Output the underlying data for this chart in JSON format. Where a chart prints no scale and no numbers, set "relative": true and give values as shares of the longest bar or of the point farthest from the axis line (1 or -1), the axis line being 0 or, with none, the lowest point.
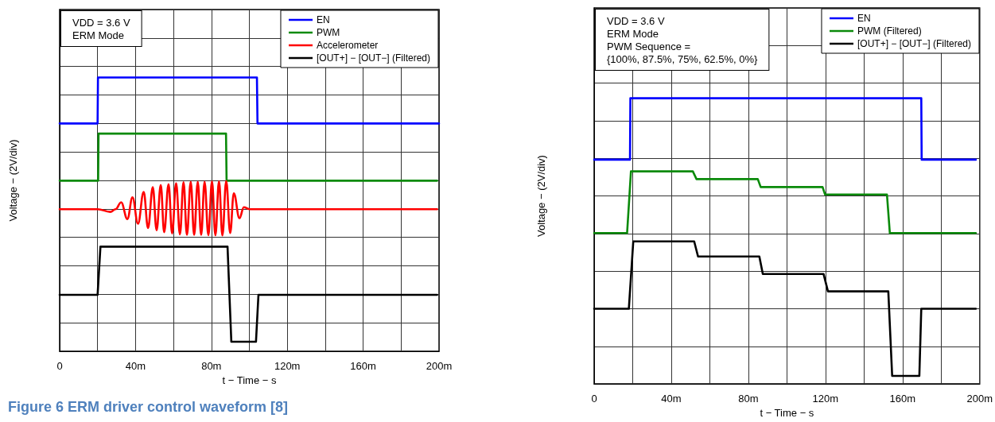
{
  "chart_data": [
    {
      "type": "line",
      "xlabel": "t − Time − s",
      "ylabel": "Voltage − (2V/div)",
      "annotations": [
        "VDD = 3.6 V\nERM Mode",
        "Figure 6 ERM driver control waveform [8]"
      ],
      "xlim": [
        0,
        200
      ],
      "xticks": [
        0,
        {
          "value": 20,
          "label": null
        },
        {
          "value": 40,
          "label": "40m"
        },
        {
          "value": 60,
          "label": null
        },
        {
          "value": 80,
          "label": "80m"
        },
        {
          "value": 100,
          "label": null
        },
        {
          "value": 120,
          "label": "120m"
        },
        {
          "value": 140,
          "label": null
        },
        {
          "value": 160,
          "label": "160m"
        },
        {
          "value": 180,
          "label": null
        },
        {
          "value": 200,
          "label": "200m"
        }
      ],
      "relative": true,
      "grid": true,
      "legend": "top right",
      "marker": "none",
      "series": [
        {
          "name": "EN",
          "color": "#0000ff",
          "x": [
            0,
            20,
            20.2,
            104,
            104.3,
            200
          ],
          "values": [
            0.832,
            0.832,
            1,
            1,
            0.832,
            0.832
          ]
        },
        {
          "name": "PWM",
          "color": "#0a8a0a",
          "x": [
            0,
            20.3,
            20.5,
            87.7,
            88,
            199
          ],
          "values": [
            0.623,
            0.623,
            0.795,
            0.795,
            0.623,
            0.623
          ]
        },
        {
          "name": "Accelerometer",
          "color": "#ff0000",
          "x": [
            0,
            20,
            26.7,
            29.5,
            32.4,
            35.7,
            38.4,
            41.3,
            44.3,
            46.6,
            49.1,
            51.1,
            53.3,
            55.1,
            57.4,
            59.3,
            61.4,
            63.4,
            65.3,
            67.1,
            69.1,
            70.9,
            72.8,
            74.6,
            76.4,
            78.4,
            80.3,
            82.1,
            84,
            85.8,
            87.8,
            89.9,
            91.8,
            94.8,
            97.1,
            100,
            199
          ],
          "values": [
            0.519,
            0.519,
            0.509,
            0.519,
            0.544,
            0.483,
            0.562,
            0.466,
            0.582,
            0.45,
            0.599,
            0.442,
            0.607,
            0.435,
            0.61,
            0.43,
            0.614,
            0.427,
            0.617,
            0.425,
            0.619,
            0.425,
            0.619,
            0.425,
            0.619,
            0.424,
            0.62,
            0.424,
            0.62,
            0.423,
            0.622,
            0.432,
            0.577,
            0.486,
            0.526,
            0.519,
            0.519
          ]
        },
        {
          "name": "[OUT+] − [OUT−] (Filtered)",
          "color": "#000000",
          "x": [
            0,
            20,
            21.5,
            88.5,
            90.5,
            103.5,
            104.8,
            199
          ],
          "values": [
            0.206,
            0.206,
            0.382,
            0.382,
            0.035,
            0.035,
            0.206,
            0.206
          ]
        }
      ]
    },
    {
      "type": "line",
      "xlabel": "t − Time − s",
      "ylabel": "Voltage − (2V/div)",
      "annotations": [
        "VDD = 3.6 V\nERM Mode\nPWM Sequence =\n{100%, 87.5%, 75%, 62.5%, 0%}"
      ],
      "xlim": [
        0,
        200
      ],
      "xticks": [
        0,
        {
          "value": 20,
          "label": null
        },
        {
          "value": 40,
          "label": "40m"
        },
        {
          "value": 60,
          "label": null
        },
        {
          "value": 80,
          "label": "80m"
        },
        {
          "value": 100,
          "label": null
        },
        {
          "value": 120,
          "label": "120m"
        },
        {
          "value": 140,
          "label": null
        },
        {
          "value": 160,
          "label": "160m"
        },
        {
          "value": 180,
          "label": null
        },
        {
          "value": 200,
          "label": "200m"
        }
      ],
      "relative": true,
      "grid": true,
      "legend": "top right",
      "marker": "none",
      "series": [
        {
          "name": "EN",
          "color": "#0000ff",
          "x": [
            0,
            18.6,
            18.8,
            169.7,
            169.9,
            198
          ],
          "values": [
            0.785,
            0.785,
            1,
            1,
            0.785,
            0.785
          ]
        },
        {
          "name": "PWM (Filtered)",
          "color": "#0a8a0a",
          "x": [
            0,
            17.1,
            19.1,
            51.2,
            53.1,
            84.9,
            86.4,
            118.5,
            119.8,
            151.9,
            153.4,
            198
          ],
          "values": [
            0.528,
            0.528,
            0.744,
            0.744,
            0.717,
            0.717,
            0.689,
            0.689,
            0.663,
            0.663,
            0.528,
            0.528
          ]
        },
        {
          "name": "[OUT+] − [OUT−] (Filtered)",
          "color": "#000000",
          "x": [
            0,
            18,
            20.3,
            51.9,
            53.9,
            85.7,
            87.5,
            119,
            121.3,
            152.6,
            154.6,
            168.7,
            169.7,
            198
          ],
          "values": [
            0.263,
            0.263,
            0.499,
            0.499,
            0.446,
            0.446,
            0.385,
            0.385,
            0.324,
            0.324,
            0.028,
            0.028,
            0.263,
            0.263
          ]
        }
      ]
    }
  ]
}
